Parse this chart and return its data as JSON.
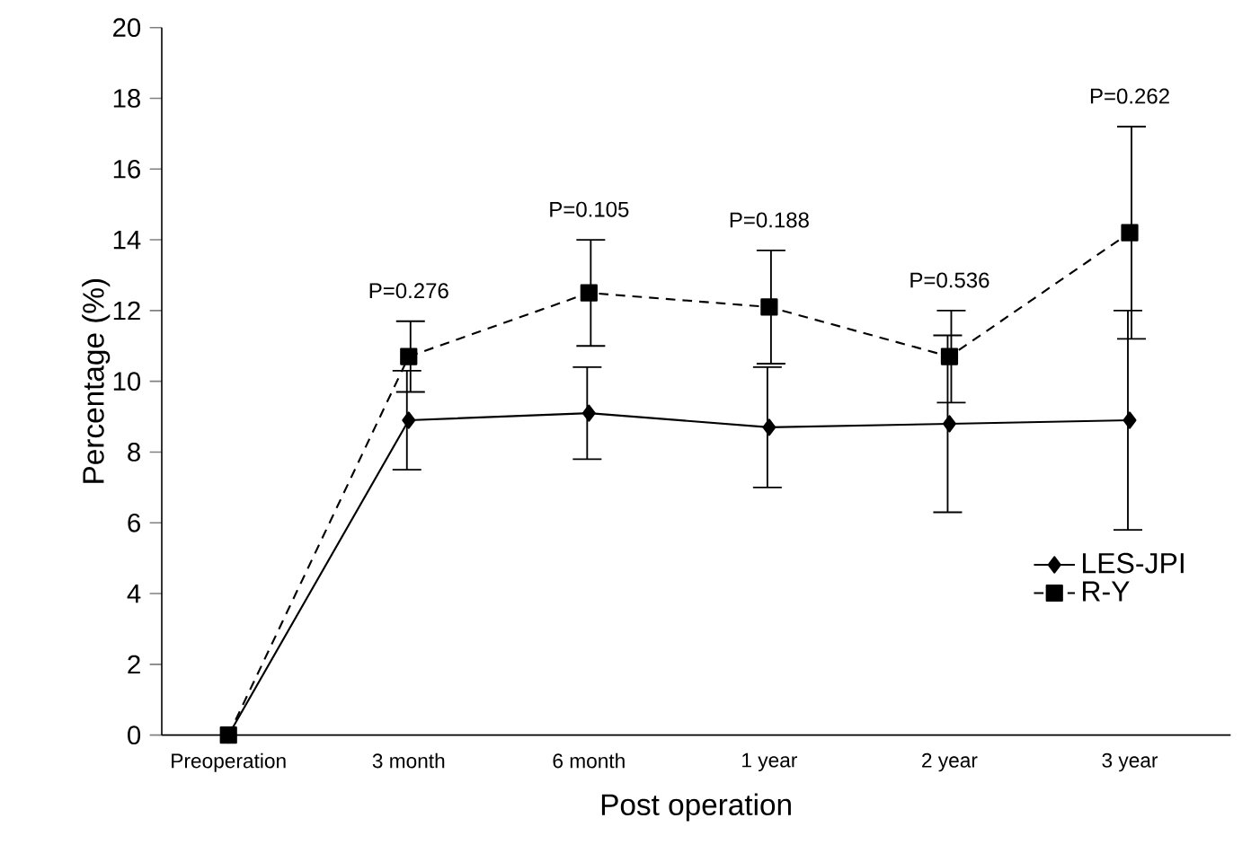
{
  "chart_data": {
    "type": "line",
    "xlabel": "Post operation",
    "ylabel": "Percentage (%)",
    "categories": [
      "Preoperation",
      "3 month",
      "6 month",
      "1 year",
      "2 year",
      "3 year"
    ],
    "series": [
      {
        "name": "LES-JPI",
        "color": "#000000",
        "marker": "diamond",
        "line_style": "solid",
        "values": [
          0,
          8.9,
          9.1,
          8.7,
          8.8,
          8.9
        ],
        "errors": [
          null,
          1.4,
          1.3,
          1.7,
          2.5,
          3.1
        ]
      },
      {
        "name": "R-Y",
        "color": "#000000",
        "marker": "square",
        "line_style": "dashed",
        "values": [
          0,
          10.7,
          12.5,
          12.1,
          10.7,
          14.2
        ],
        "errors": [
          null,
          1.0,
          1.5,
          1.6,
          1.3,
          3.0
        ]
      }
    ],
    "ylim": [
      0,
      20
    ],
    "yticks": [
      0,
      2,
      4,
      6,
      8,
      10,
      12,
      14,
      16,
      18,
      20
    ],
    "grid": false,
    "legend": "bottom right",
    "annotations": [
      "P=0.276",
      "P=0.105",
      "P=0.188",
      "P=0.536",
      "P=0.262"
    ]
  }
}
